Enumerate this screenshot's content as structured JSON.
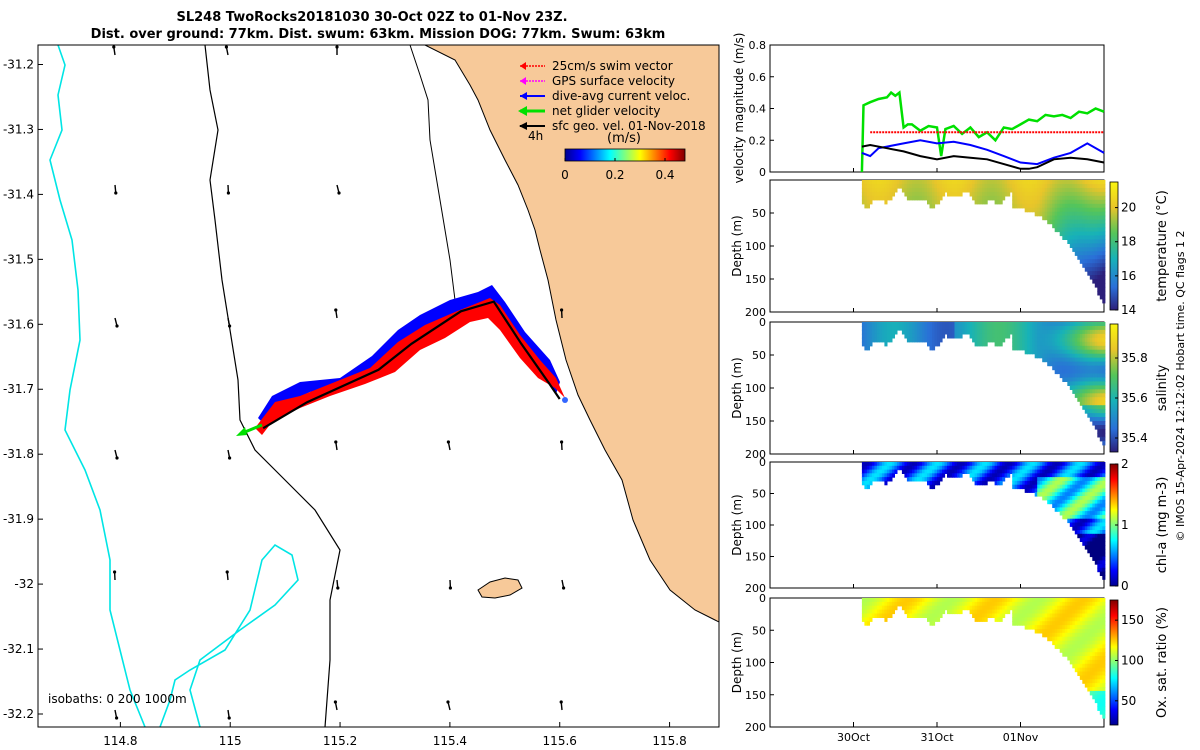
{
  "title_line1": "SL248 TwoRocks20181030 30-Oct 02Z to 01-Nov 23Z.",
  "title_line2": "Dist. over ground: 77km. Dist. swum: 63km. Mission DOG: 77km. Swum: 63km",
  "side_note": "© IMOS 15-Apr-2024 12:12:02 Hobart time. QC flags 1  2",
  "colors": {
    "land": "#f7c999",
    "shelf_contour": "#00e5e5",
    "swim": "#ff0000",
    "gps": "#ff00ff",
    "current": "#0000ff",
    "net": "#00e000",
    "geo": "#000000"
  },
  "chart_data": [
    {
      "type": "map",
      "xlim": [
        114.65,
        115.89
      ],
      "ylim": [
        -32.22,
        -31.17
      ],
      "xticks": [
        "114.8",
        "115",
        "115.2",
        "115.4",
        "115.6",
        "115.8"
      ],
      "yticks": [
        "-31.2",
        "-31.3",
        "-31.4",
        "-31.5",
        "-31.6",
        "-31.7",
        "-31.8",
        "-31.9",
        "-32",
        "-32.1",
        "-32.2"
      ],
      "isobaths_label": "isobaths: 0   200  1000m",
      "legend": [
        {
          "label": "25cm/s swim vector",
          "color": "#ff0000"
        },
        {
          "label": "GPS surface velocity",
          "color": "#ff00ff"
        },
        {
          "label": "dive-avg current veloc.",
          "color": "#0000ff"
        },
        {
          "label": "net glider velocity",
          "color": "#00e000"
        },
        {
          "label": "sfc geo. vel. 01-Nov-2018",
          "color": "#000000"
        }
      ],
      "legend_note": "4h",
      "colorbar": {
        "label": "(m/s)",
        "ticks": [
          "0",
          "0.2",
          "0.4"
        ],
        "range": [
          0,
          0.48
        ]
      },
      "track": [
        [
          115.06,
          -31.76
        ],
        [
          115.14,
          -31.72
        ],
        [
          115.27,
          -31.67
        ],
        [
          115.33,
          -31.63
        ],
        [
          115.42,
          -31.58
        ],
        [
          115.48,
          -31.565
        ],
        [
          115.53,
          -31.63
        ],
        [
          115.58,
          -31.69
        ],
        [
          115.6,
          -31.715
        ]
      ]
    },
    {
      "type": "line",
      "ylabel": "velocity magnitude (m/s)",
      "ylim": [
        0,
        0.8
      ],
      "yticks": [
        "0",
        "0.2",
        "0.4",
        "0.6",
        "0.8"
      ],
      "series": [
        {
          "color": "#00e000",
          "x": [
            30.1,
            30.12,
            30.2,
            30.3,
            30.4,
            30.45,
            30.5,
            30.55,
            30.6,
            30.65,
            30.7,
            30.8,
            30.9,
            31.0,
            31.05,
            31.1,
            31.2,
            31.3,
            31.4,
            31.5,
            31.6,
            31.7,
            31.8,
            31.9,
            32.0,
            32.1,
            32.2,
            32.3,
            32.4,
            32.5,
            32.6,
            32.7,
            32.8,
            32.9,
            33.0
          ],
          "y": [
            0.0,
            0.42,
            0.44,
            0.46,
            0.47,
            0.5,
            0.48,
            0.5,
            0.28,
            0.3,
            0.3,
            0.26,
            0.29,
            0.28,
            0.1,
            0.27,
            0.29,
            0.24,
            0.28,
            0.22,
            0.25,
            0.2,
            0.28,
            0.27,
            0.3,
            0.33,
            0.32,
            0.36,
            0.35,
            0.36,
            0.34,
            0.38,
            0.37,
            0.4,
            0.38
          ]
        },
        {
          "color": "#ff0000",
          "x": [
            30.2,
            33.0
          ],
          "y": [
            0.25,
            0.25
          ]
        },
        {
          "color": "#0000ff",
          "x": [
            30.1,
            30.2,
            30.3,
            30.4,
            30.6,
            30.8,
            31.0,
            31.2,
            31.4,
            31.6,
            31.8,
            32.0,
            32.2,
            32.4,
            32.6,
            32.8,
            33.0
          ],
          "y": [
            0.12,
            0.1,
            0.15,
            0.16,
            0.18,
            0.2,
            0.18,
            0.19,
            0.17,
            0.14,
            0.1,
            0.06,
            0.05,
            0.09,
            0.12,
            0.18,
            0.12
          ]
        },
        {
          "color": "#000000",
          "x": [
            30.1,
            30.2,
            30.4,
            30.6,
            30.8,
            31.0,
            31.2,
            31.4,
            31.6,
            31.8,
            32.0,
            32.1,
            32.2,
            32.4,
            32.6,
            32.8,
            33.0
          ],
          "y": [
            0.16,
            0.17,
            0.15,
            0.13,
            0.1,
            0.08,
            0.1,
            0.09,
            0.08,
            0.05,
            0.02,
            0.02,
            0.03,
            0.08,
            0.09,
            0.08,
            0.06
          ]
        }
      ]
    },
    {
      "type": "heatmap",
      "variable": "temperature",
      "ylabel": "Depth (m)",
      "cblabel": "temperature (°C)",
      "ylim": [
        0,
        200
      ],
      "yticks": [
        "50",
        "100",
        "150",
        "200"
      ],
      "cbticks": [
        "14",
        "16",
        "18",
        "20"
      ],
      "crange": [
        14,
        21.5
      ]
    },
    {
      "type": "heatmap",
      "variable": "salinity",
      "ylabel": "Depth (m)",
      "cblabel": "salinity",
      "ylim": [
        0,
        200
      ],
      "yticks": [
        "0",
        "50",
        "100",
        "150",
        "200"
      ],
      "cbticks": [
        "35.4",
        "35.6",
        "35.8"
      ],
      "crange": [
        35.33,
        35.97
      ]
    },
    {
      "type": "heatmap",
      "variable": "chlorophyll",
      "ylabel": "Depth (m)",
      "cblabel": "chl-a (mg m-3)",
      "ylim": [
        0,
        200
      ],
      "yticks": [
        "0",
        "50",
        "100",
        "150",
        "200"
      ],
      "cbticks": [
        "0",
        "1",
        "2"
      ],
      "crange": [
        0,
        2
      ]
    },
    {
      "type": "heatmap",
      "variable": "oxygen",
      "ylabel": "Depth (m)",
      "cblabel": "Ox. sat. ratio (%)",
      "ylim": [
        0,
        200
      ],
      "yticks": [
        "0",
        "50",
        "100",
        "150",
        "200"
      ],
      "cbticks": [
        "50",
        "100",
        "150"
      ],
      "crange": [
        20,
        175
      ]
    }
  ],
  "time_axis": {
    "ticks": [
      "30Oct",
      "31Oct",
      "01Nov"
    ]
  }
}
